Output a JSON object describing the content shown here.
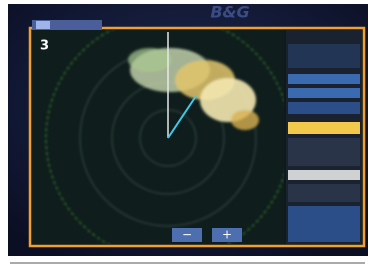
{
  "header": {
    "brand": "B&G"
  },
  "radar": {
    "range": "3"
  },
  "controls": {
    "zoom_out": "−",
    "zoom_in": "+"
  }
}
